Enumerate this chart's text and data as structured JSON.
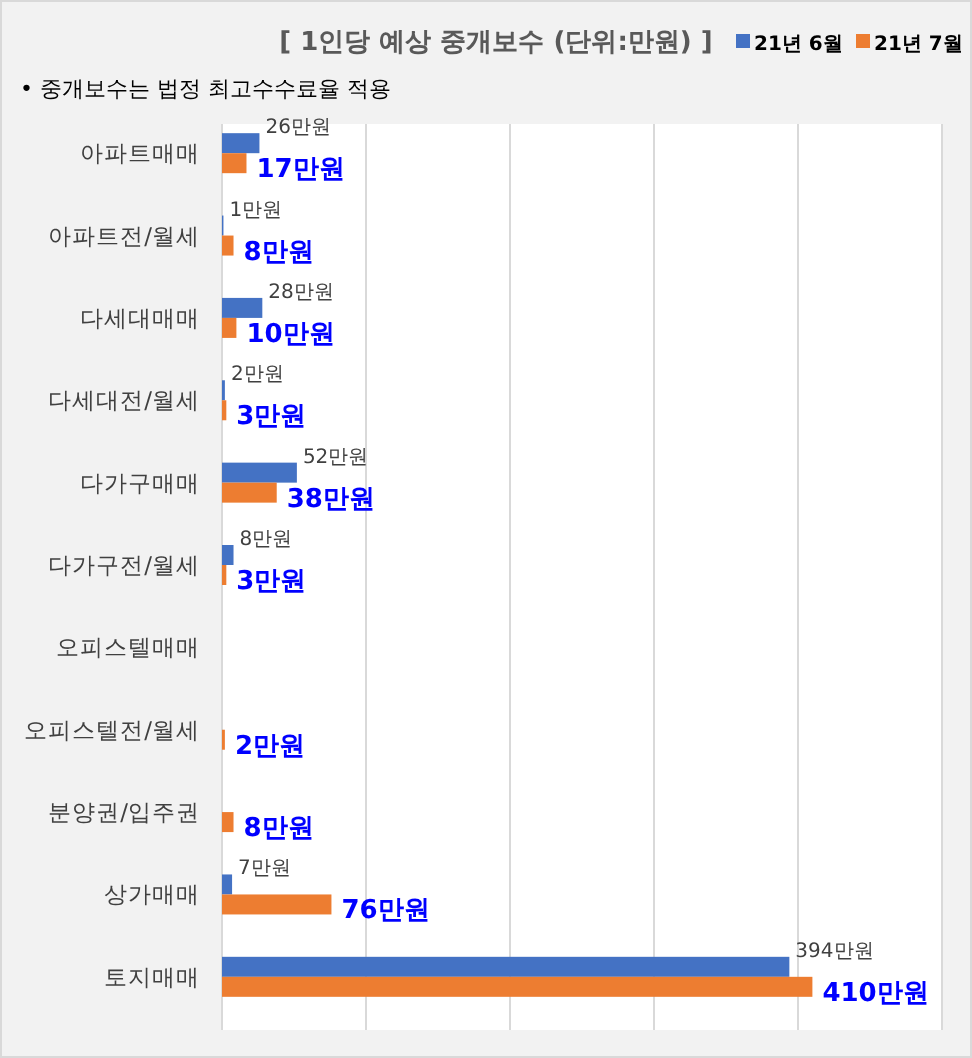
{
  "chart_data": {
    "type": "bar",
    "orientation": "horizontal",
    "title": "[ 1인당 예상 중개보수 (단위:만원) ]",
    "annotations": [
      "• 중개보수는 법정 최고수수료율 적용"
    ],
    "categories": [
      "아파트매매",
      "아파트전/월세",
      "다세대매매",
      "다세대전/월세",
      "다가구매매",
      "다가구전/월세",
      "오피스텔매매",
      "오피스텔전/월세",
      "분양권/입주권",
      "상가매매",
      "토지매매"
    ],
    "series": [
      {
        "name": "21년 6월",
        "color": "#4472c4",
        "values": [
          26,
          1,
          28,
          2,
          52,
          8,
          null,
          null,
          null,
          7,
          394
        ],
        "value_labels": [
          "26만원",
          "1만원",
          "28만원",
          "2만원",
          "52만원",
          "8만원",
          null,
          null,
          null,
          "7만원",
          "394만원"
        ]
      },
      {
        "name": "21년 7월",
        "color": "#ed7d31",
        "values": [
          17,
          8,
          10,
          3,
          38,
          3,
          null,
          2,
          8,
          76,
          410
        ],
        "value_labels": [
          "17만원",
          "8만원",
          "10만원",
          "3만원",
          "38만원",
          "3만원",
          null,
          "2만원",
          "8만원",
          "76만원",
          "410만원"
        ]
      }
    ],
    "xlim": [
      0,
      500
    ],
    "xticks": [
      {
        "value": 0,
        "label": null
      },
      {
        "value": 100,
        "label": null
      },
      {
        "value": 200,
        "label": null
      },
      {
        "value": 300,
        "label": null
      },
      {
        "value": 400,
        "label": null
      },
      {
        "value": 500,
        "label": null
      }
    ],
    "grid": "x",
    "legend": "top right"
  }
}
